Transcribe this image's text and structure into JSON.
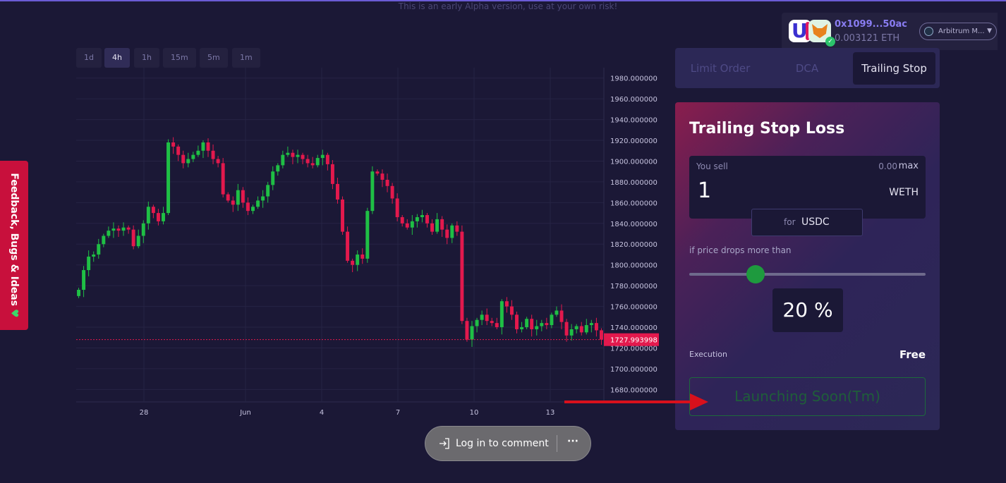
{
  "banner": {
    "alpha_notice": "This is an early Alpha version, use at your own risk!"
  },
  "feedback": {
    "label": "Feedback, Bugs & Ideas",
    "icon": "green-heart-icon"
  },
  "timeframes": [
    {
      "label": "1d",
      "active": false
    },
    {
      "label": "4h",
      "active": true
    },
    {
      "label": "1h",
      "active": false
    },
    {
      "label": "15m",
      "active": false
    },
    {
      "label": "5m",
      "active": false
    },
    {
      "label": "1m",
      "active": false
    }
  ],
  "wallet": {
    "address": "0x1099...50ac",
    "balance": "0.003121 ETH",
    "network": "Arbitrum M..."
  },
  "tabs": {
    "limit": "Limit Order",
    "dca": "DCA",
    "trailing": "Trailing Stop",
    "active": "Trailing Stop"
  },
  "card": {
    "title": "Trailing Stop Loss",
    "sell_label": "You sell",
    "balance": "0.00",
    "max_label": "max",
    "amount": "1",
    "sell_token": "WETH",
    "for_label": "for",
    "buy_token": "USDC",
    "drop_label": "if price drops more than",
    "drop_percent": 20,
    "drop_percent_text": "20 %",
    "exec_label": "Execution",
    "exec_value": "Free",
    "launch_label": "Launching Soon(Tm)"
  },
  "comment": {
    "label": "Log in to comment",
    "more": "···"
  },
  "colors": {
    "up": "#1fbf45",
    "down": "#e3194d",
    "accent": "#8a7df2",
    "background": "#1b1836"
  },
  "chart_data": {
    "type": "candlestick",
    "y_ticks": [
      "1980.000000",
      "1960.000000",
      "1940.000000",
      "1920.000000",
      "1900.000000",
      "1880.000000",
      "1860.000000",
      "1840.000000",
      "1820.000000",
      "1800.000000",
      "1780.000000",
      "1760.000000",
      "1740.000000",
      "1720.000000",
      "1700.000000",
      "1680.000000"
    ],
    "ylim": [
      1668,
      1990
    ],
    "x_ticks": [
      "28",
      "Jun",
      "4",
      "7",
      "10",
      "13"
    ],
    "last_price": "1727.993998",
    "last_price_value": 1727.993998,
    "closes": [
      1776,
      1795,
      1808,
      1810,
      1820,
      1828,
      1833,
      1835,
      1833,
      1836,
      1834,
      1818,
      1828,
      1840,
      1856,
      1850,
      1842,
      1850,
      1918,
      1914,
      1906,
      1898,
      1902,
      1906,
      1910,
      1918,
      1910,
      1902,
      1898,
      1868,
      1862,
      1858,
      1872,
      1860,
      1852,
      1856,
      1862,
      1866,
      1877,
      1890,
      1896,
      1906,
      1908,
      1904,
      1906,
      1902,
      1898,
      1896,
      1903,
      1906,
      1897,
      1878,
      1863,
      1832,
      1804,
      1800,
      1810,
      1806,
      1852,
      1890,
      1888,
      1882,
      1876,
      1864,
      1846,
      1840,
      1836,
      1842,
      1846,
      1848,
      1840,
      1832,
      1844,
      1834,
      1826,
      1838,
      1832,
      1746,
      1728,
      1741,
      1747,
      1752,
      1746,
      1744,
      1740,
      1765,
      1760,
      1752,
      1738,
      1740,
      1748,
      1738,
      1741,
      1744,
      1742,
      1752,
      1756,
      1745,
      1732,
      1738,
      1741,
      1735,
      1742,
      1744,
      1737,
      1728
    ]
  }
}
